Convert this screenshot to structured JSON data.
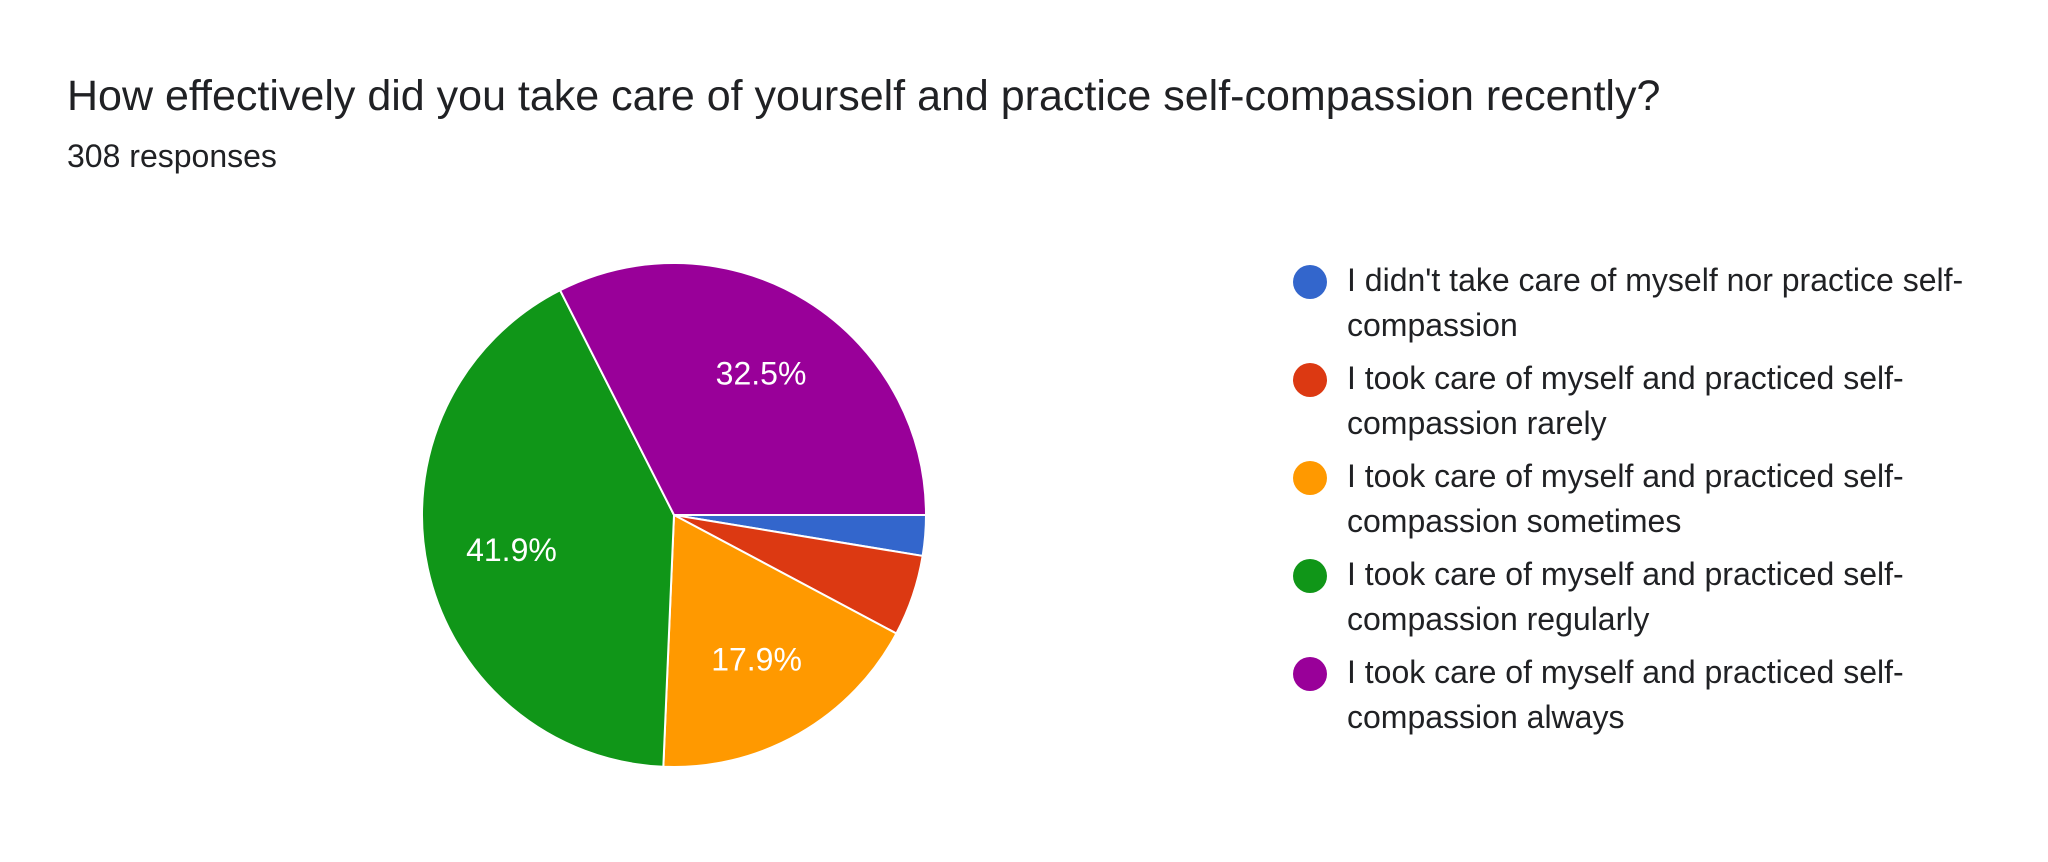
{
  "header": {
    "title": "How effectively did you take care of yourself and practice self-compassion recently?",
    "responses": "308 responses"
  },
  "chart_data": {
    "type": "pie",
    "title": "How effectively did you take care of yourself and practice self-compassion recently?",
    "subtitle": "308 responses",
    "legend_position": "right",
    "slices": [
      {
        "label": "I didn't take care of myself nor practice self-compassion",
        "value": 2.6,
        "display": "",
        "color": "#3366cc"
      },
      {
        "label": "I took care of myself and practiced self-compassion rarely",
        "value": 5.2,
        "display": "",
        "color": "#dc3912"
      },
      {
        "label": "I took care of myself and practiced self-compassion sometimes",
        "value": 17.9,
        "display": "17.9%",
        "color": "#ff9900"
      },
      {
        "label": "I took care of myself and practiced self-compassion regularly",
        "value": 41.9,
        "display": "41.9%",
        "color": "#109618"
      },
      {
        "label": "I took care of myself and practiced self-compassion always",
        "value": 32.5,
        "display": "32.5%",
        "color": "#990099"
      }
    ]
  }
}
